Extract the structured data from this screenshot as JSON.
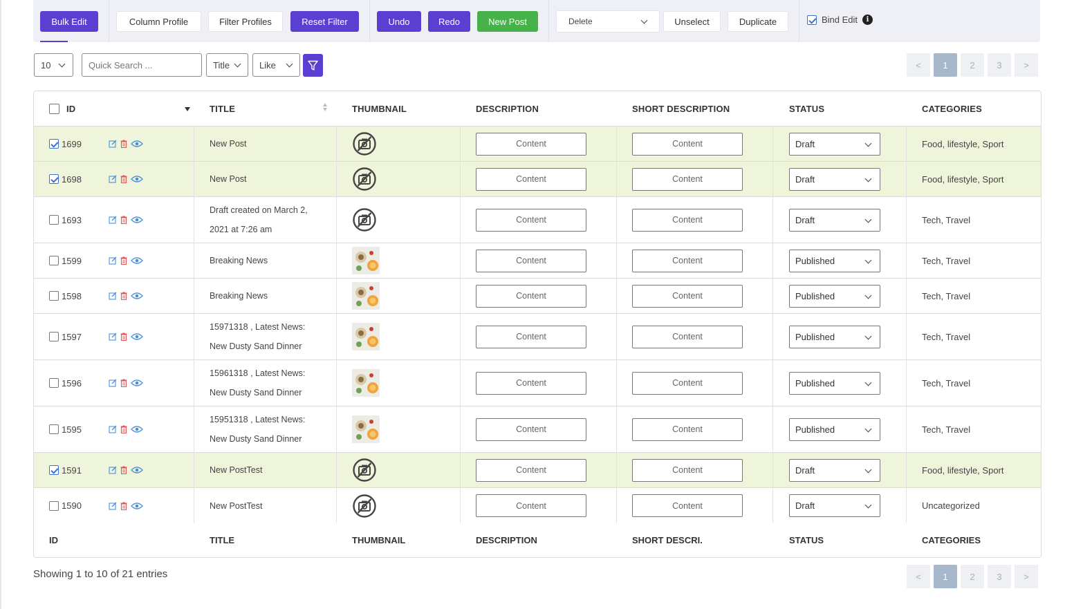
{
  "toolbar": {
    "bulk_edit": "Bulk Edit",
    "column_profile": "Column Profile",
    "filter_profiles": "Filter Profiles",
    "reset_filter": "Reset Filter",
    "undo": "Undo",
    "redo": "Redo",
    "new_post": "New Post",
    "action_select": "Delete",
    "unselect": "Unselect",
    "duplicate": "Duplicate",
    "bind_edit": "Bind Edit",
    "bind_edit_checked": true,
    "info_glyph": "i"
  },
  "filters": {
    "per_page": "10",
    "search_placeholder": "Quick Search ...",
    "field": "Title",
    "operator": "Like"
  },
  "pagination": {
    "prev": "<",
    "pages": [
      "1",
      "2",
      "3"
    ],
    "active": "1",
    "next": ">"
  },
  "table": {
    "headers": {
      "id": "ID",
      "title": "TITLE",
      "thumbnail": "THUMBNAIL",
      "description": "DESCRIPTION",
      "short_description": "SHORT DESCRIPTION",
      "status": "STATUS",
      "categories": "CATEGORIES"
    },
    "footers": {
      "id": "ID",
      "title": "TITLE",
      "thumbnail": "THUMBNAIL",
      "description": "DESCRIPTION",
      "short_description": "SHORT DESCRI.",
      "status": "STATUS",
      "categories": "CATEGORIES"
    },
    "rows": [
      {
        "id": "1699",
        "checked": true,
        "title": [
          "New Post"
        ],
        "thumb": "placeholder",
        "description": "Content",
        "short_description": "Content",
        "status": "Draft",
        "categories": "Food, lifestyle, Sport"
      },
      {
        "id": "1698",
        "checked": true,
        "title": [
          "New Post"
        ],
        "thumb": "placeholder",
        "description": "Content",
        "short_description": "Content",
        "status": "Draft",
        "categories": "Food, lifestyle, Sport"
      },
      {
        "id": "1693",
        "checked": false,
        "title": [
          "Draft created on March 2,",
          "2021 at 7:26 am"
        ],
        "thumb": "placeholder",
        "description": "Content",
        "short_description": "Content",
        "status": "Draft",
        "categories": "Tech, Travel"
      },
      {
        "id": "1599",
        "checked": false,
        "title": [
          "Breaking News"
        ],
        "thumb": "photo",
        "description": "Content",
        "short_description": "Content",
        "status": "Published",
        "categories": "Tech, Travel"
      },
      {
        "id": "1598",
        "checked": false,
        "title": [
          "Breaking News"
        ],
        "thumb": "photo",
        "description": "Content",
        "short_description": "Content",
        "status": "Published",
        "categories": "Tech, Travel"
      },
      {
        "id": "1597",
        "checked": false,
        "title": [
          "15971318 , Latest News:",
          "New Dusty Sand Dinner"
        ],
        "thumb": "photo",
        "description": "Content",
        "short_description": "Content",
        "status": "Published",
        "categories": "Tech, Travel"
      },
      {
        "id": "1596",
        "checked": false,
        "title": [
          "15961318 , Latest News:",
          "New Dusty Sand Dinner"
        ],
        "thumb": "photo",
        "description": "Content",
        "short_description": "Content",
        "status": "Published",
        "categories": "Tech, Travel"
      },
      {
        "id": "1595",
        "checked": false,
        "title": [
          "15951318 , Latest News:",
          "New Dusty Sand Dinner"
        ],
        "thumb": "photo",
        "description": "Content",
        "short_description": "Content",
        "status": "Published",
        "categories": "Tech, Travel"
      },
      {
        "id": "1591",
        "checked": true,
        "title": [
          "New PostTest"
        ],
        "thumb": "placeholder",
        "description": "Content",
        "short_description": "Content",
        "status": "Draft",
        "categories": "Food, lifestyle, Sport"
      },
      {
        "id": "1590",
        "checked": false,
        "title": [
          "New PostTest"
        ],
        "thumb": "placeholder",
        "description": "Content",
        "short_description": "Content",
        "status": "Draft",
        "categories": "Uncategorized"
      }
    ]
  },
  "summary": "Showing 1 to 10 of 21 entries",
  "colors": {
    "accent_purple": "#5a3fd1",
    "accent_green": "#47b14a",
    "selected_row": "#eef5db",
    "edit_icon": "#4a8fd9",
    "delete_icon": "#e05656"
  },
  "icons": [
    "edit-icon",
    "trash-icon",
    "eye-icon",
    "no-image-icon",
    "funnel-icon",
    "chevron-down-icon",
    "info-icon",
    "sort-icon"
  ]
}
